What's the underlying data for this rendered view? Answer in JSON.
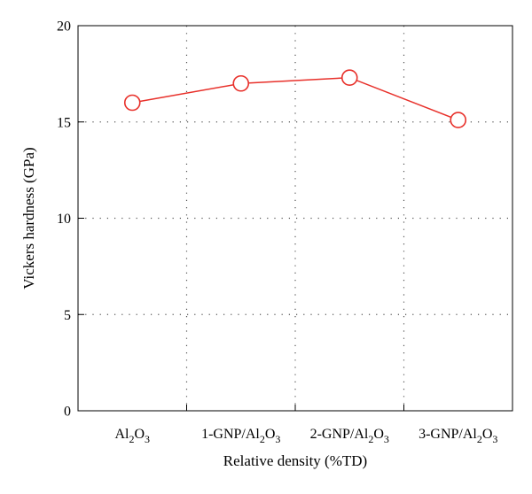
{
  "chart_data": {
    "type": "line",
    "title": "",
    "xlabel": "Relative density (%TD)",
    "ylabel": "Vickers hardness (GPa)",
    "ylim": [
      0,
      20
    ],
    "yticks": [
      "0",
      "5",
      "10",
      "15",
      "20"
    ],
    "categories": [
      {
        "base": "Al",
        "sub1": "2",
        "mid": "O",
        "sub2": "3",
        "prefix": ""
      },
      {
        "base": "Al",
        "sub1": "2",
        "mid": "O",
        "sub2": "3",
        "prefix": "1-GNP/"
      },
      {
        "base": "Al",
        "sub1": "2",
        "mid": "O",
        "sub2": "3",
        "prefix": "2-GNP/"
      },
      {
        "base": "Al",
        "sub1": "2",
        "mid": "O",
        "sub2": "3",
        "prefix": "3-GNP/"
      }
    ],
    "values": [
      16.0,
      17.0,
      17.3,
      15.1
    ],
    "grid": "dotted",
    "legend": "none",
    "colors": {
      "line": "#e8302a",
      "marker_fill": "#ffffff",
      "axis": "#000000",
      "grid": "#555555"
    }
  }
}
